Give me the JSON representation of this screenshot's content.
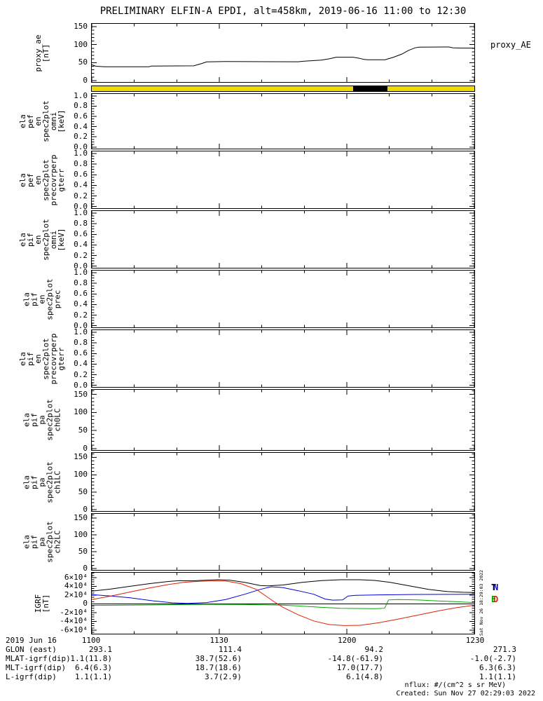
{
  "title": "PRELIMINARY ELFIN-A EPDI, alt=458km, 2019-06-16 11:00 to 12:30",
  "right_labels": {
    "proxy_ae": "proxy_AE"
  },
  "side_note": "Sat Nov 26 18:29:03 2022",
  "legend": {
    "entries": [
      {
        "label": "T",
        "color": "#000000"
      },
      {
        "label": "N",
        "color": "#0000dd"
      },
      {
        "label": "E",
        "color": "#00aa00"
      },
      {
        "label": "D",
        "color": "#dd2200"
      }
    ]
  },
  "panels": [
    {
      "id": "proxy",
      "kind": "line",
      "chart": "proxy_ae",
      "ylabel": "proxy_ae\n[nT]",
      "ylim": [
        -4,
        158
      ],
      "yticks": [
        [
          0,
          "0"
        ],
        [
          50,
          "50"
        ],
        [
          100,
          "100"
        ],
        [
          150,
          "150"
        ]
      ],
      "yminor": 10
    },
    {
      "id": "bar",
      "kind": "bar",
      "chart": "status_bar"
    },
    {
      "id": "pef_en_omni",
      "kind": "empty",
      "ylabel": "ela\npef\nen\nspec2plot\nomni\n[keV]",
      "ylim": [
        -0.03,
        1.04
      ],
      "yticks": [
        [
          0,
          "0.0"
        ],
        [
          0.2,
          "0.2"
        ],
        [
          0.4,
          "0.4"
        ],
        [
          0.6,
          "0.6"
        ],
        [
          0.8,
          "0.8"
        ],
        [
          1,
          "1.0"
        ]
      ],
      "yminor": 0.05
    },
    {
      "id": "pef_en_precovr",
      "kind": "empty",
      "ylabel": "ela\npef\nen\nspec2plot\nprecovrperp\ngterr",
      "ylim": [
        -0.03,
        1.04
      ],
      "yticks": [
        [
          0,
          "0.0"
        ],
        [
          0.2,
          "0.2"
        ],
        [
          0.4,
          "0.4"
        ],
        [
          0.6,
          "0.6"
        ],
        [
          0.8,
          "0.8"
        ],
        [
          1,
          "1.0"
        ]
      ],
      "yminor": 0.05
    },
    {
      "id": "pif_en_omni",
      "kind": "empty",
      "ylabel": "ela\npif\nen\nspec2plot\nomni\n[keV]",
      "ylim": [
        -0.03,
        1.04
      ],
      "yticks": [
        [
          0,
          "0.0"
        ],
        [
          0.2,
          "0.2"
        ],
        [
          0.4,
          "0.4"
        ],
        [
          0.6,
          "0.6"
        ],
        [
          0.8,
          "0.8"
        ],
        [
          1,
          "1.0"
        ]
      ],
      "yminor": 0.05
    },
    {
      "id": "pif_en_prec",
      "kind": "empty",
      "ylabel": "ela\npif\nen\nspec2plot\nprec",
      "ylim": [
        -0.03,
        1.04
      ],
      "yticks": [
        [
          0,
          "0.0"
        ],
        [
          0.2,
          "0.2"
        ],
        [
          0.4,
          "0.4"
        ],
        [
          0.6,
          "0.6"
        ],
        [
          0.8,
          "0.8"
        ],
        [
          1,
          "1.0"
        ]
      ],
      "yminor": 0.05
    },
    {
      "id": "pif_en_precovr",
      "kind": "empty",
      "ylabel": "ela\npif\nen\nspec2plot\nprecovrperp\ngterr",
      "ylim": [
        -0.03,
        1.04
      ],
      "yticks": [
        [
          0,
          "0.0"
        ],
        [
          0.2,
          "0.2"
        ],
        [
          0.4,
          "0.4"
        ],
        [
          0.6,
          "0.6"
        ],
        [
          0.8,
          "0.8"
        ],
        [
          1,
          "1.0"
        ]
      ],
      "yminor": 0.05
    },
    {
      "id": "pif_pa_ch0",
      "kind": "empty",
      "ylabel": "ela\npif\npa\nspec2plot\nch0LC",
      "ylim": [
        -4,
        163
      ],
      "yticks": [
        [
          0,
          "0"
        ],
        [
          50,
          "50"
        ],
        [
          100,
          "100"
        ],
        [
          150,
          "150"
        ]
      ],
      "yminor": 10
    },
    {
      "id": "pif_pa_ch1",
      "kind": "empty",
      "ylabel": "ela\npif\npa\nspec2plot\nch1LC",
      "ylim": [
        -4,
        163
      ],
      "yticks": [
        [
          0,
          "0"
        ],
        [
          50,
          "50"
        ],
        [
          100,
          "100"
        ],
        [
          150,
          "150"
        ]
      ],
      "yminor": 10
    },
    {
      "id": "pif_pa_ch2",
      "kind": "empty",
      "ylabel": "ela\npif\npa\nspec2plot\nch2LC",
      "ylim": [
        -4,
        163
      ],
      "yticks": [
        [
          0,
          "0"
        ],
        [
          50,
          "50"
        ],
        [
          100,
          "100"
        ],
        [
          150,
          "150"
        ]
      ],
      "yminor": 10
    },
    {
      "id": "igrf",
      "kind": "line",
      "chart": "igrf",
      "ylabel": "IGRF\n[nT]",
      "zeroline": true,
      "ylim": [
        -68000,
        71000
      ],
      "yticks": [
        [
          -60000,
          "-6×10⁴"
        ],
        [
          -40000,
          "-4×10⁴"
        ],
        [
          -20000,
          "-2×10⁴"
        ],
        [
          0,
          "0"
        ],
        [
          20000,
          "2×10⁴"
        ],
        [
          40000,
          "4×10⁴"
        ],
        [
          60000,
          "6×10⁴"
        ]
      ],
      "yminor": 5000
    }
  ],
  "chart_data": [
    {
      "type": "line",
      "id": "proxy_ae",
      "title": "proxy_AE",
      "ylabel": "proxy_ae [nT]",
      "x_unit": "minutes after 2019-06-16 11:00 UT",
      "xlim": [
        0,
        90
      ],
      "ylim": [
        0,
        150
      ],
      "xticklabels": [
        "1100",
        "1130",
        "1200",
        "1230"
      ],
      "series": [
        {
          "name": "proxy_AE",
          "color": "#000000",
          "x": [
            0,
            1,
            3,
            13.5,
            14,
            24,
            26,
            27,
            31.5,
            48.5,
            50,
            54,
            56,
            57.5,
            61.5,
            63,
            64,
            65,
            69,
            71,
            73,
            74.5,
            76,
            77,
            84,
            85,
            87,
            90
          ],
          "y": [
            44,
            40,
            38.5,
            38.5,
            40.5,
            41,
            48,
            52,
            53,
            52.5,
            54,
            57,
            61,
            65,
            65,
            62,
            59,
            58,
            58,
            65,
            74,
            84,
            91,
            93,
            93.5,
            91,
            90.5,
            90.5
          ]
        }
      ]
    },
    {
      "type": "strip",
      "id": "status_bar",
      "xlim": [
        0,
        90
      ],
      "segments": [
        {
          "start": 0,
          "end": 90,
          "color": "#f0d800"
        },
        {
          "start": 61.5,
          "end": 69.5,
          "color": "#000000"
        }
      ]
    },
    {
      "type": "line",
      "id": "igrf",
      "ylabel": "IGRF [nT]",
      "x_unit": "minutes after 2019-06-16 11:00 UT",
      "xlim": [
        0,
        90
      ],
      "ylim": [
        -60000,
        60000
      ],
      "xticklabels": [
        "1100",
        "1130",
        "1200",
        "1230"
      ],
      "series": [
        {
          "name": "T",
          "color": "#000000",
          "x": [
            0,
            4.5,
            9,
            13.5,
            18,
            20.7,
            23.4,
            27,
            29.7,
            32.4,
            36,
            39.6,
            41.4,
            45,
            49.5,
            54,
            58.5,
            63,
            66.6,
            70.2,
            74.7,
            79.2,
            83.7,
            87.3,
            90
          ],
          "y": [
            29000,
            34000,
            40000,
            46000,
            51000,
            53000,
            52500,
            54000,
            55000,
            54000,
            49000,
            42000,
            41000,
            43000,
            49000,
            53000,
            55000,
            55000,
            53500,
            49000,
            41000,
            33000,
            28000,
            26500,
            26000
          ]
        },
        {
          "name": "N",
          "color": "#0000dd",
          "x": [
            0,
            4.5,
            9,
            14.4,
            18.9,
            22.5,
            27,
            31.5,
            36,
            39.6,
            42.3,
            45,
            48.6,
            52.2,
            54.9,
            56.7,
            59,
            60.3,
            62.1,
            67.5,
            76.5,
            90
          ],
          "y": [
            21000,
            18000,
            14000,
            7000,
            2500,
            1000,
            3000,
            10000,
            22000,
            33000,
            39000,
            37000,
            30000,
            22000,
            11000,
            8500,
            9000,
            18000,
            19500,
            20500,
            21500,
            22000
          ]
        },
        {
          "name": "E",
          "color": "#00aa00",
          "x": [
            0,
            9,
            18,
            27,
            36,
            45,
            49.5,
            54,
            58.5,
            63,
            66.6,
            68.9,
            69.8,
            72,
            76.5,
            81,
            85.5,
            90
          ],
          "y": [
            -3500,
            -3000,
            -2000,
            -1000,
            -1500,
            -3000,
            -5000,
            -8000,
            -10000,
            -10500,
            -11000,
            -10000,
            9000,
            10000,
            9000,
            7000,
            5000,
            3000
          ]
        },
        {
          "name": "D",
          "color": "#dd2200",
          "x": [
            0,
            4.5,
            9,
            13.5,
            18,
            21.6,
            25.2,
            28.8,
            31.5,
            35.1,
            38.7,
            41.4,
            43.2,
            45,
            48.6,
            52.2,
            55.8,
            59.4,
            63,
            67.5,
            72,
            76.5,
            81,
            85.5,
            90
          ],
          "y": [
            10000,
            18000,
            27000,
            36000,
            44000,
            49000,
            51500,
            52500,
            52000,
            46000,
            33000,
            15000,
            3000,
            -8000,
            -25000,
            -39000,
            -47000,
            -49500,
            -49000,
            -43000,
            -35000,
            -26000,
            -17000,
            -9000,
            -3000
          ]
        }
      ]
    }
  ],
  "footer": {
    "rows": [
      {
        "label": "2019 Jun 16",
        "values": [
          "1100",
          "1130",
          "1200",
          "1230"
        ]
      },
      {
        "label": "GLON (east)",
        "values": [
          "293.1",
          "111.4",
          "94.2",
          "271.3"
        ]
      },
      {
        "label": "MLAT-igrf(dip)",
        "values": [
          "1.1(11.8)",
          "38.7(52.6)",
          "-14.8(-61.9)",
          "-1.0(-2.7)"
        ]
      },
      {
        "label": "MLT-igrf(dip)",
        "values": [
          "6.4(6.3)",
          "18.7(18.6)",
          "17.0(17.7)",
          "6.3(6.3)"
        ]
      },
      {
        "label": "L-igrf(dip)",
        "values": [
          "1.1(1.1)",
          "3.7(2.9)",
          "6.1(4.8)",
          "1.1(1.1)"
        ]
      }
    ],
    "notes": [
      "nflux: #/(cm^2 s sr MeV)",
      "Created: Sun Nov 27 02:29:03 2022"
    ]
  }
}
